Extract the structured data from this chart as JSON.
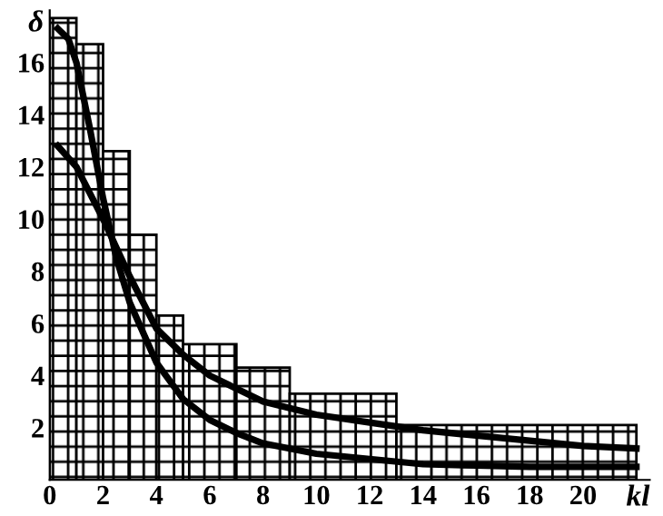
{
  "chart_data": {
    "type": "histogram",
    "xlabel": "kl",
    "ylabel": "δ",
    "bins": [
      0,
      1,
      2,
      3,
      4,
      5,
      7,
      9,
      13,
      22
    ],
    "values": [
      17.7,
      16.7,
      12.6,
      9.4,
      6.3,
      5.2,
      4.3,
      3.3,
      2.1
    ],
    "color": "#000000",
    "series": [
      {
        "type": "line",
        "color": "#000000",
        "x": [
          0.3,
          0.7,
          1,
          1.5,
          2,
          2.5,
          3,
          4,
          5,
          6,
          7,
          8,
          10,
          12,
          14,
          16,
          18,
          20,
          22
        ],
        "values": [
          17.3,
          16.9,
          16,
          13.5,
          10.8,
          8.5,
          6.8,
          4.5,
          3.1,
          2.3,
          1.8,
          1.4,
          1.0,
          0.8,
          0.6,
          0.55,
          0.5,
          0.5,
          0.5
        ]
      },
      {
        "type": "line",
        "color": "#000000",
        "x": [
          0.3,
          1,
          1.5,
          2,
          3,
          4,
          5,
          6,
          7,
          8,
          10,
          12,
          14,
          16,
          18,
          20,
          22
        ],
        "values": [
          12.8,
          12.0,
          11,
          10,
          7.8,
          5.8,
          4.8,
          4.0,
          3.5,
          3.0,
          2.5,
          2.2,
          1.9,
          1.7,
          1.5,
          1.3,
          1.2
        ]
      }
    ],
    "xlim": [
      0,
      22.5
    ],
    "ylim": [
      0,
      18
    ],
    "xticks": [
      0,
      2,
      4,
      6,
      8,
      10,
      12,
      14,
      16,
      18,
      20
    ],
    "yticks": [
      2,
      4,
      6,
      8,
      10,
      12,
      14,
      16
    ],
    "grid": false,
    "legend": false
  }
}
